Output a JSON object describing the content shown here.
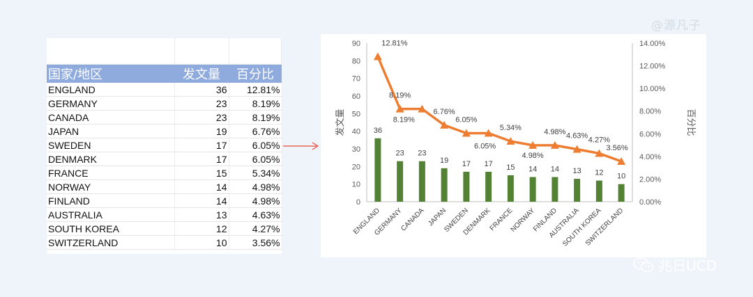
{
  "watermark": "@源凡子",
  "brand": {
    "name": "兆日UCD"
  },
  "table": {
    "headers": [
      "国家/地区",
      "发文量",
      "百分比"
    ],
    "rows": [
      [
        "ENGLAND",
        "36",
        "12.81%"
      ],
      [
        "GERMANY",
        "23",
        "8.19%"
      ],
      [
        "CANADA",
        "23",
        "8.19%"
      ],
      [
        "JAPAN",
        "19",
        "6.76%"
      ],
      [
        "SWEDEN",
        "17",
        "6.05%"
      ],
      [
        "DENMARK",
        "17",
        "6.05%"
      ],
      [
        "FRANCE",
        "15",
        "5.34%"
      ],
      [
        "NORWAY",
        "14",
        "4.98%"
      ],
      [
        "FINLAND",
        "14",
        "4.98%"
      ],
      [
        "AUSTRALIA",
        "13",
        "4.63%"
      ],
      [
        "SOUTH KOREA",
        "12",
        "4.27%"
      ],
      [
        "SWITZERLAND",
        "10",
        "3.56%"
      ]
    ]
  },
  "chart_data": {
    "type": "bar",
    "categories": [
      "ENGLAND",
      "GERMANY",
      "CANADA",
      "JAPAN",
      "SWEDEN",
      "DENMARK",
      "FRANCE",
      "NORWAY",
      "FINLAND",
      "AUSTRALIA",
      "SOUTH KOREA",
      "SWITZERLAND"
    ],
    "series": [
      {
        "type": "bar",
        "axis": "left",
        "color": "#548235",
        "values": [
          36,
          23,
          23,
          19,
          17,
          17,
          15,
          14,
          14,
          13,
          12,
          10
        ]
      },
      {
        "type": "line",
        "axis": "right",
        "color": "#ed7d31",
        "marker": "triangle",
        "values": [
          12.81,
          8.19,
          8.19,
          6.76,
          6.05,
          6.05,
          5.34,
          4.98,
          4.98,
          4.63,
          4.27,
          3.56
        ],
        "labels": [
          "12.81%",
          "8.19%",
          "8.19%",
          "6.76%",
          "6.05%",
          "6.05%",
          "5.34%",
          "4.98%",
          "4.98%",
          "4.63%",
          "4.27%",
          "3.56%"
        ]
      }
    ],
    "ylabel": "发文量",
    "y2label": "百分比",
    "ylim": [
      0,
      90
    ],
    "yticks": [
      "0",
      "10",
      "20",
      "30",
      "40",
      "50",
      "60",
      "70",
      "80",
      "90"
    ],
    "y2lim": [
      0,
      14
    ],
    "y2ticks": [
      "0.00%",
      "2.00%",
      "4.00%",
      "6.00%",
      "8.00%",
      "10.00%",
      "12.00%",
      "14.00%"
    ],
    "grid": false,
    "legend": "none"
  }
}
